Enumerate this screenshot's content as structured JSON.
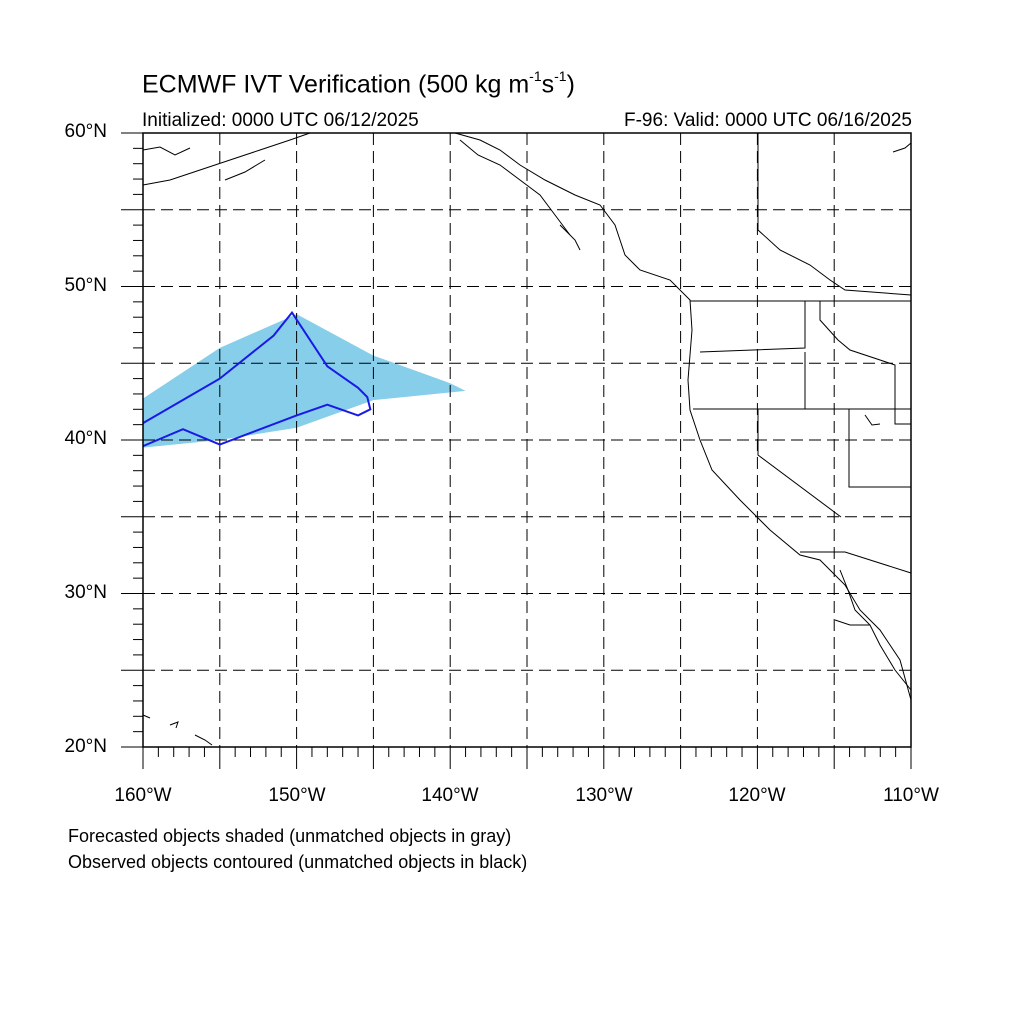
{
  "title_main": "ECMWF IVT Verification (500 kg m",
  "title_exp1": "-1",
  "title_mid": "s",
  "title_exp2": "-1",
  "title_end": ")",
  "initialized": "Initialized: 0000 UTC 06/12/2025",
  "valid": "F-96: Valid: 0000 UTC 06/16/2025",
  "lat_labels": [
    "60°N",
    "50°N",
    "40°N",
    "30°N",
    "20°N"
  ],
  "lon_labels": [
    "160°W",
    "150°W",
    "140°W",
    "130°W",
    "120°W",
    "110°W"
  ],
  "notes": [
    "Forecasted objects shaded (unmatched objects in gray)",
    "Observed objects contoured (unmatched objects in black)"
  ],
  "map_extent": {
    "lon": [
      -160,
      -110
    ],
    "lat": [
      20,
      60
    ]
  },
  "colors": {
    "forecast_fill": "#87ceeb",
    "observed_contour": "#1a1ae6",
    "coast": "#000000",
    "grid": "#000000"
  },
  "forecast_object": {
    "lon": [
      -160,
      -155,
      -150,
      -145,
      -140,
      -139,
      -145,
      -150,
      -155,
      -160
    ],
    "lat": [
      42.7,
      46,
      48.2,
      45.5,
      43.7,
      43.2,
      42.6,
      40.8,
      40,
      39.5
    ]
  },
  "observed_object": {
    "lon": [
      -160,
      -155,
      -151.5,
      -150.3,
      -148,
      -146,
      -145.4,
      -145.2,
      -146,
      -148,
      -150,
      -155,
      -157.4,
      -160
    ],
    "lat": [
      41.1,
      44,
      46.8,
      48.3,
      44.8,
      43.4,
      42.8,
      42,
      41.6,
      42.3,
      41.6,
      39.7,
      40.7,
      39.6
    ]
  }
}
